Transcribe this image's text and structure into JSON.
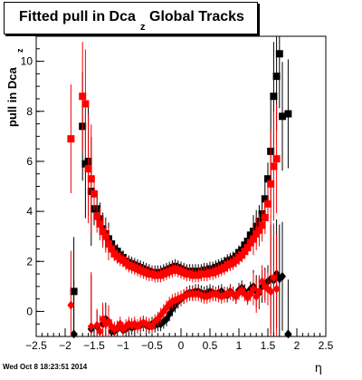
{
  "title": {
    "main": "Fitted pull in Dca",
    "sub": "z",
    "tail": "Global Tracks"
  },
  "footer": {
    "timestamp": "Wed Oct  8 18:23:51 2014"
  },
  "chart_data": {
    "type": "scatter",
    "xlabel": "η",
    "ylabel_main": "pull in Dca",
    "ylabel_sub": "z",
    "xlim": [
      -2.5,
      2.5
    ],
    "ylim": [
      -1.0,
      11.0
    ],
    "xticks": [
      -2.5,
      -2,
      -1.5,
      -1,
      -0.5,
      0,
      0.5,
      1,
      1.5,
      2,
      2.5
    ],
    "xtick_labels": [
      "−2.5",
      "−2",
      "−1.5",
      "−1",
      "−0.5",
      "0",
      "0.5",
      "1",
      "1.5",
      "2",
      "2.5"
    ],
    "yticks": [
      0,
      2,
      4,
      6,
      8,
      10
    ],
    "ytick_labels": [
      "0",
      "2",
      "4",
      "6",
      "8",
      "10"
    ],
    "colors": {
      "black": "#000000",
      "red": "#ff0000"
    },
    "series": [
      {
        "color": "black",
        "marker": "square",
        "x": [
          -1.85,
          -1.7,
          -1.65,
          -1.6,
          -1.55,
          -1.5,
          -1.45,
          -1.4,
          -1.35,
          -1.3,
          -1.25,
          -1.2,
          -1.15,
          -1.1,
          -1.05,
          -1.0,
          -0.95,
          -0.9,
          -0.85,
          -0.8,
          -0.75,
          -0.7,
          -0.65,
          -0.6,
          -0.55,
          -0.5,
          -0.45,
          -0.4,
          -0.35,
          -0.3,
          -0.25,
          -0.2,
          -0.15,
          -0.1,
          -0.05,
          0.0,
          0.05,
          0.1,
          0.15,
          0.2,
          0.25,
          0.3,
          0.35,
          0.4,
          0.45,
          0.5,
          0.55,
          0.6,
          0.65,
          0.7,
          0.75,
          0.8,
          0.85,
          0.9,
          0.95,
          1.0,
          1.05,
          1.1,
          1.15,
          1.2,
          1.25,
          1.3,
          1.35,
          1.4,
          1.45,
          1.5,
          1.55,
          1.6,
          1.65,
          1.7,
          1.75,
          1.85
        ],
        "y": [
          0.8,
          7.4,
          5.9,
          6.0,
          4.8,
          4.1,
          4.1,
          3.7,
          3.3,
          3.1,
          2.9,
          2.7,
          2.5,
          2.4,
          2.25,
          2.15,
          2.0,
          1.95,
          1.9,
          1.85,
          1.8,
          1.75,
          1.7,
          1.65,
          1.6,
          1.55,
          1.55,
          1.55,
          1.55,
          1.6,
          1.65,
          1.7,
          1.75,
          1.8,
          1.75,
          1.7,
          1.65,
          1.6,
          1.6,
          1.6,
          1.6,
          1.6,
          1.6,
          1.65,
          1.65,
          1.7,
          1.7,
          1.75,
          1.8,
          1.85,
          1.9,
          2.0,
          2.05,
          2.1,
          2.2,
          2.35,
          2.45,
          2.65,
          2.8,
          3.05,
          3.2,
          3.4,
          3.6,
          3.9,
          4.5,
          5.3,
          6.4,
          8.6,
          9.4,
          10.3,
          7.8,
          7.9
        ]
      },
      {
        "color": "black",
        "marker": "diamond",
        "x": [
          -1.85,
          -1.55,
          -1.45,
          -1.35,
          -1.3,
          -1.25,
          -1.2,
          -1.15,
          -1.1,
          -1.0,
          -0.95,
          -0.9,
          -0.85,
          -0.8,
          -0.75,
          -0.7,
          -0.65,
          -0.6,
          -0.55,
          -0.5,
          -0.45,
          -0.4,
          -0.35,
          -0.3,
          -0.25,
          -0.2,
          -0.15,
          -0.1,
          -0.05,
          0.0,
          0.05,
          0.1,
          0.15,
          0.2,
          0.25,
          0.3,
          0.35,
          0.4,
          0.45,
          0.5,
          0.55,
          0.6,
          0.65,
          0.7,
          0.75,
          0.8,
          0.85,
          0.9,
          0.95,
          1.0,
          1.05,
          1.1,
          1.15,
          1.2,
          1.25,
          1.3,
          1.35,
          1.4,
          1.45,
          1.5,
          1.55,
          1.6,
          1.65,
          1.7,
          1.75,
          1.85
        ],
        "y": [
          -0.9,
          -0.7,
          -0.6,
          -0.5,
          -0.3,
          -0.4,
          -0.8,
          -0.8,
          -0.7,
          -0.75,
          -0.7,
          -0.6,
          -0.65,
          -0.6,
          -0.6,
          -0.55,
          -0.5,
          -0.55,
          -0.6,
          -0.5,
          -0.55,
          -0.5,
          -0.5,
          -0.4,
          -0.3,
          -0.1,
          0.1,
          0.25,
          0.4,
          0.5,
          0.6,
          0.7,
          0.75,
          0.75,
          0.8,
          0.8,
          0.75,
          0.7,
          0.75,
          0.8,
          0.75,
          0.7,
          0.75,
          0.8,
          0.7,
          0.65,
          0.8,
          0.7,
          0.6,
          0.85,
          0.95,
          0.8,
          0.6,
          0.9,
          1.0,
          0.8,
          0.75,
          1.0,
          1.1,
          1.2,
          1.3,
          1.25,
          1.5,
          1.3,
          1.4,
          -0.9
        ]
      },
      {
        "color": "red",
        "marker": "square",
        "x": [
          -1.9,
          -1.7,
          -1.65,
          -1.6,
          -1.55,
          -1.5,
          -1.45,
          -1.4,
          -1.35,
          -1.3,
          -1.25,
          -1.2,
          -1.15,
          -1.1,
          -1.05,
          -1.0,
          -0.95,
          -0.9,
          -0.85,
          -0.8,
          -0.75,
          -0.7,
          -0.65,
          -0.6,
          -0.55,
          -0.5,
          -0.45,
          -0.4,
          -0.35,
          -0.3,
          -0.25,
          -0.2,
          -0.15,
          -0.1,
          -0.05,
          0.0,
          0.05,
          0.1,
          0.15,
          0.2,
          0.25,
          0.3,
          0.35,
          0.4,
          0.45,
          0.5,
          0.55,
          0.6,
          0.65,
          0.7,
          0.75,
          0.8,
          0.85,
          0.9,
          0.95,
          1.0,
          1.05,
          1.1,
          1.15,
          1.2,
          1.25,
          1.3,
          1.35,
          1.4,
          1.45,
          1.5,
          1.55,
          1.6,
          1.65
        ],
        "y": [
          6.9,
          8.6,
          8.3,
          5.7,
          5.3,
          4.7,
          3.8,
          3.5,
          3.2,
          3.0,
          2.7,
          2.5,
          2.3,
          2.2,
          2.1,
          2.05,
          1.95,
          1.85,
          1.8,
          1.75,
          1.7,
          1.65,
          1.6,
          1.55,
          1.5,
          1.5,
          1.45,
          1.45,
          1.45,
          1.5,
          1.55,
          1.6,
          1.65,
          1.7,
          1.65,
          1.6,
          1.55,
          1.5,
          1.5,
          1.45,
          1.45,
          1.45,
          1.5,
          1.5,
          1.5,
          1.55,
          1.55,
          1.6,
          1.65,
          1.7,
          1.75,
          1.85,
          1.9,
          1.95,
          2.05,
          2.15,
          2.25,
          2.4,
          2.55,
          2.75,
          2.9,
          3.1,
          3.25,
          3.45,
          3.75,
          4.3,
          5.1,
          5.8,
          6.1
        ]
      },
      {
        "color": "red",
        "marker": "diamond",
        "x": [
          -1.9,
          -1.55,
          -1.45,
          -1.4,
          -1.35,
          -1.3,
          -1.25,
          -1.2,
          -1.15,
          -1.1,
          -1.05,
          -1.0,
          -0.95,
          -0.9,
          -0.85,
          -0.8,
          -0.75,
          -0.7,
          -0.65,
          -0.6,
          -0.55,
          -0.5,
          -0.45,
          -0.4,
          -0.35,
          -0.3,
          -0.25,
          -0.2,
          -0.15,
          -0.1,
          -0.05,
          0.0,
          0.05,
          0.1,
          0.15,
          0.2,
          0.25,
          0.3,
          0.35,
          0.4,
          0.45,
          0.5,
          0.55,
          0.6,
          0.65,
          0.7,
          0.75,
          0.8,
          0.85,
          0.9,
          0.95,
          1.0,
          1.05,
          1.1,
          1.15,
          1.2,
          1.25,
          1.3,
          1.35,
          1.4,
          1.45,
          1.5,
          1.55,
          1.6,
          1.65
        ],
        "y": [
          0.25,
          -0.6,
          -0.55,
          -0.8,
          -0.3,
          -0.5,
          -0.4,
          -0.6,
          -0.7,
          -0.65,
          -0.5,
          -0.7,
          -0.6,
          -0.5,
          -0.55,
          -0.5,
          -0.6,
          -0.5,
          -0.45,
          -0.5,
          -0.55,
          -0.6,
          -0.4,
          -0.3,
          -0.15,
          0.0,
          0.15,
          0.3,
          0.4,
          0.45,
          0.5,
          0.55,
          0.6,
          0.65,
          0.7,
          0.7,
          0.7,
          0.7,
          0.65,
          0.6,
          0.6,
          0.65,
          0.7,
          0.7,
          0.65,
          0.6,
          0.65,
          0.7,
          0.75,
          0.7,
          0.6,
          0.75,
          0.85,
          0.7,
          0.55,
          0.7,
          0.9,
          0.6,
          0.8,
          1.2,
          1.0,
          0.9,
          0.8,
          1.35,
          0.9
        ]
      }
    ]
  }
}
